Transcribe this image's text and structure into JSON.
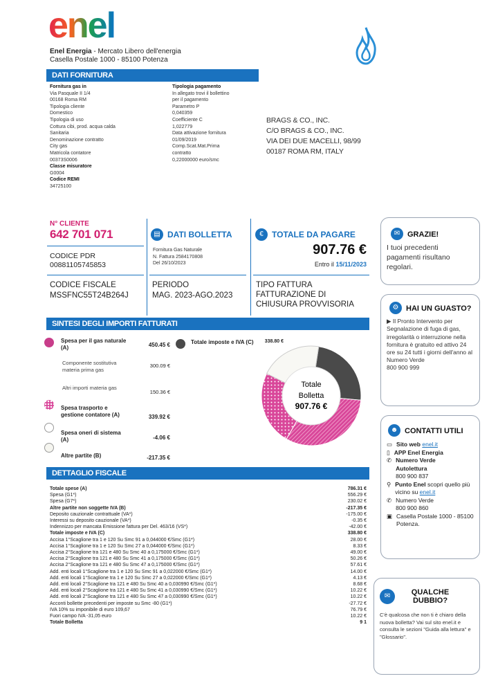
{
  "header": {
    "logo_text": "enel",
    "company_name": "Enel Energia",
    "company_rest": " - Mercato Libero dell'energia",
    "address": "Casella  Postale 1000 - 85100 Potenza"
  },
  "dati_fornitura": {
    "title": "DATI FORNITURA",
    "left": [
      {
        "t": "Fornitura gas in",
        "b": true
      },
      {
        "t": "Via Pasquale II 1/4"
      },
      {
        "t": "00168 Roma RM"
      },
      {
        "t": "Tipologia  cliente"
      },
      {
        "t": "Domestico"
      },
      {
        "t": "Tipologia  di uso"
      },
      {
        "t": "Cottura cibi, prod. acqua calda"
      },
      {
        "t": "Sanitaria"
      },
      {
        "t": "Denominazione  contratto"
      },
      {
        "t": "City gas"
      },
      {
        "t": "Matricola  contatore"
      },
      {
        "t": "00373S0006"
      },
      {
        "t": "Classe misuratore",
        "b": true
      },
      {
        "t": "G0004"
      },
      {
        "t": "Codice REMI",
        "b": true
      },
      {
        "t": "34725100"
      }
    ],
    "right": [
      {
        "t": "Tipologia pagamento",
        "b": true
      },
      {
        "t": "In allegato trovi il bollettino"
      },
      {
        "t": "per il pagamento"
      },
      {
        "t": "Parametro  P"
      },
      {
        "t": "0,040359"
      },
      {
        "t": "Coefficiente  C"
      },
      {
        "t": "1,022779"
      },
      {
        "t": "Data attivazione  fornitura"
      },
      {
        "t": "01/09/2019"
      },
      {
        "t": "Comp.Scat.Mat.Prima"
      },
      {
        "t": "contratto"
      },
      {
        "t": "0,22000000  euro/smc"
      }
    ]
  },
  "recipient": {
    "line1": "BRAGS & CO., INC.",
    "line2": "C/O BRAGS & CO., INC.",
    "line3": "VIA DEI DUE MACELLI, 98/99",
    "line4": "00187 ROMA RM, ITALY"
  },
  "cliente": {
    "label": "N° CLIENTE",
    "number": "642 701 071",
    "pdr_label": "CODICE PDR",
    "pdr_value": "00881105745853",
    "cf_label": "CODICE FISCALE",
    "cf_value": "MSSFNC55T24B264J"
  },
  "bolletta": {
    "title": "DATI BOLLETTA",
    "line1": "Fornitura  Gas Naturale",
    "line2": "N. Fattura 2584170808",
    "line3": "Del 26/10/2023",
    "periodo_label": "PERIODO",
    "periodo_value": "MAG. 2023-AGO.2023"
  },
  "totale": {
    "title": "TOTALE DA PAGARE",
    "amount": "907.76 €",
    "entro_label": "Entro il",
    "entro_date": "15/11/2023",
    "tipo_label": "TIPO FATTURA",
    "tipo_value1": "FATTURAZIONE DI",
    "tipo_value2": "CHIUSURA PROVVISORIA"
  },
  "grazie": {
    "title": "GRAZIE!",
    "text": "I tuoi precedenti pagamenti risultano regolari."
  },
  "guasto": {
    "title": "HAI UN GUASTO?",
    "text": "Il Pronto Intervento per Segnalazione di fuga di gas, irregolarità o interruzione nella fornitura è gratuito ed attivo 24 ore su 24 tutti i giorni dell'anno al Numero Verde",
    "number": "800 900 999"
  },
  "contatti": {
    "title": "CONTATTI UTILI",
    "sito_label": "Sito web",
    "sito_link": "enel.it",
    "app": "APP Enel Energia",
    "nv_label": "Numero Verde",
    "autolettura": "Autolettura",
    "autolettura_num": "800 900 837",
    "punto_label": "Punto Enel",
    "punto_text": " scopri quello più vicino su ",
    "punto_link": "enel.it",
    "nv2_label": "Numero Verde",
    "nv2_num": "800 900 860",
    "casella": "Casella Postale 1000 - 85100 Potenza."
  },
  "dubbio": {
    "title": "QUALCHE DUBBIO?",
    "text": "C'è qualcosa che non ti è chiaro della nuova bolletta? Vai sul sito enel.it e consulta le sezioni \"Guida alla lettura\" e \"Glossario\"."
  },
  "sintesi": {
    "title": "SINTESI DEGLI IMPORTI FATTURATI",
    "materia_label": "Spesa per il gas naturale (A)",
    "materia_value": "450.45 €",
    "comp_label": "Componente sostitutiva materia prima gas",
    "comp_value": "300.09 €",
    "altri_label": "Altri importi materia gas",
    "altri_value": "150.36 €",
    "trasporto_label": "Spesa trasporto e gestione contatore (A)",
    "trasporto_value": "339.92 €",
    "oneri_label": "Spesa oneri di sistema (A)",
    "oneri_value": "-4.06 €",
    "partite_label": "Altre partite (B)",
    "partite_value": "-217.35 €",
    "imposte_label": "Totale imposte e IVA (C)",
    "imposte_value": "338.80 €",
    "donut_label1": "Totale",
    "donut_label2": "Bolletta",
    "donut_amount": "907.76 €"
  },
  "chart_data": {
    "type": "pie",
    "categories": [
      "Totale imposte e IVA (C)",
      "Spesa per il gas naturale (A)",
      "Spesa trasporto e gestione contatore (A)",
      "Spesa oneri di sistema (A)",
      "Altre partite (B)"
    ],
    "values": [
      338.8,
      450.45,
      339.92,
      -4.06,
      -217.35
    ],
    "colors": [
      "#4a4a4a",
      "#d9479a",
      "#e88bbf",
      "#ffffff",
      "#f5f5f0"
    ]
  },
  "dettaglio": {
    "title": "DETTAGLIO FISCALE",
    "rows": [
      {
        "l": "Totale spese (A)",
        "v": "786.31 €",
        "b": true
      },
      {
        "l": "Spesa (G1*)",
        "v": "556.29 €"
      },
      {
        "l": "Spesa (G7*)",
        "v": "230.02 €"
      },
      {
        "l": "Altre partite non soggette IVA (B)",
        "v": "-217.35 €",
        "b": true
      },
      {
        "l": "Deposito cauzionale contrattuale  (VA*)",
        "v": "-175.00 €"
      },
      {
        "l": "Interessi su deposito cauzionale  (VA*)",
        "v": "-0.35 €"
      },
      {
        "l": "Indennizzo per mancata Emissione fattura per Del. 463/16 (VS*)",
        "v": "-42.00 €"
      },
      {
        "l": "Totale imposte e IVA (C)",
        "v": "338.80 €",
        "b": true
      },
      {
        "l": "Accisa  1°Scaglione  tra 1 e 120 Su Smc 91 a 0,044000  €/Smc (G1*)",
        "v": "28.00 €"
      },
      {
        "l": "Accisa  1°Scaglione  tra 1 e 120 Su Smc 27 a 0,044000  €/Smc (G1*)",
        "v": "8.33 €"
      },
      {
        "l": "Accisa  2°Scaglione  tra 121 e 480 Su Smc 40 a 0,175000  €/Smc (G1*)",
        "v": "49.00 €"
      },
      {
        "l": "Accisa  2°Scaglione  tra 121 e 480 Su Smc 41 a 0,175000  €/Smc (G1*)",
        "v": "50.26 €"
      },
      {
        "l": "Accisa  2°Scaglione  tra 121 e 480 Su Smc 47 a 0,175000  €/Smc (G1*)",
        "v": "57.61 €"
      },
      {
        "l": "Add.  enti locali 1°Scaglione  tra 1 e 120 Su Smc 91 a 0,022000  €/Smc (G1*)",
        "v": "14.00 €"
      },
      {
        "l": "Add.  enti locali 1°Scaglione  tra 1 e 120 Su Smc 27 a 0,022000  €/Smc (G1*)",
        "v": "4.13 €"
      },
      {
        "l": "Add.  enti locali 2°Scaglione  tra 121 e 480 Su Smc 40 a 0,030990  €/Smc (G1*)",
        "v": "8.68 €"
      },
      {
        "l": "Add.  enti locali 2°Scaglione  tra 121 e 480 Su Smc 41 a 0,030990  €/Smc (G1*)",
        "v": "10.22 €"
      },
      {
        "l": "Add.  enti locali 2°Scaglione  tra 121 e 480 Su Smc 47 a 0,030990  €/Smc (G1*)",
        "v": "10.22 €"
      },
      {
        "l": "Acconti  bollette  precedenti per imposte su Smc -80 (G1*)",
        "v": "-27.72 €"
      },
      {
        "l": "IVA 10% su imponibile di euro 109,67",
        "v": "76.79 €"
      },
      {
        "l": "Fuori campo IVA -31,05 euro",
        "v": "10.22 €"
      },
      {
        "l": "Totale Bolletta",
        "v": "9 1",
        "b": true
      }
    ]
  }
}
